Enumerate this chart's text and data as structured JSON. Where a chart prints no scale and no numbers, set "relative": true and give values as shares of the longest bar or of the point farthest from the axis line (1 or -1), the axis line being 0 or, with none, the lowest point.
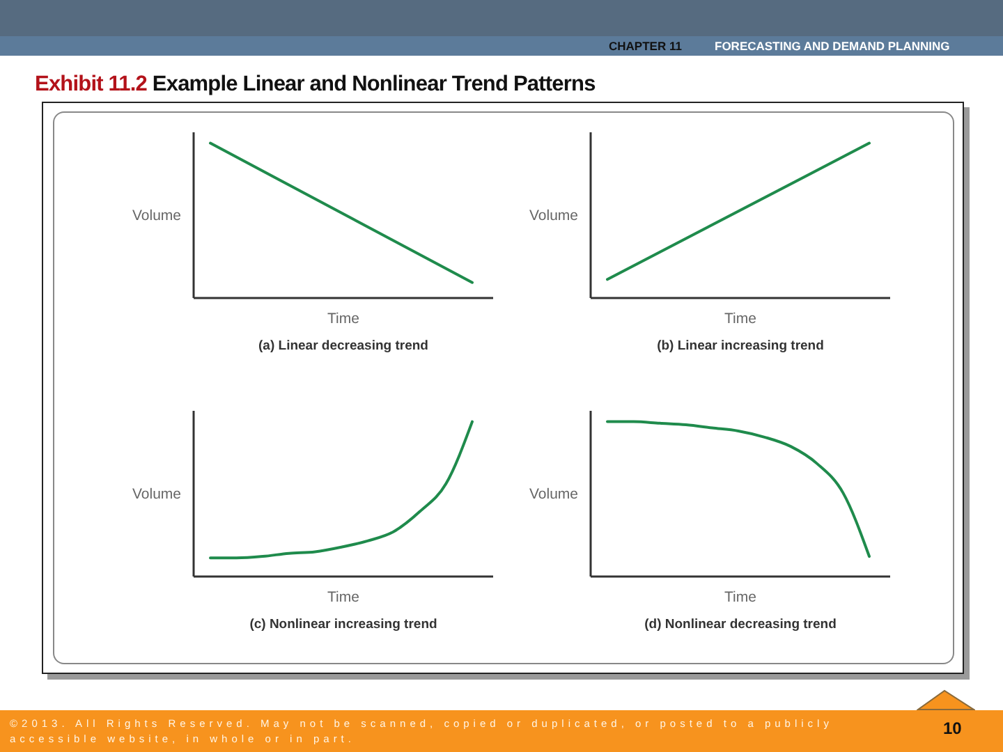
{
  "chart_data": [
    {
      "type": "other",
      "title": "Exhibit 11.2 Example Linear and Nonlinear Trend Patterns",
      "annotations": [
        "CHAPTER 11",
        "FORECASTING AND DEMAND PLANNING",
        "©2013. All Rights Reserved. May not be scanned, copied or duplicated, or posted to a publicly accessible website, in whole or in part.",
        "10"
      ]
    },
    {
      "type": "line",
      "title": "(a) Linear decreasing trend",
      "xlabel": "Time",
      "ylabel": "Volume",
      "categories": [
        null,
        null
      ],
      "values": [
        1,
        0.1
      ],
      "color": "#1f8b4c",
      "relative": true
    },
    {
      "type": "line",
      "title": "(b) Linear increasing trend",
      "xlabel": "Time",
      "ylabel": "Volume",
      "categories": [
        null,
        null
      ],
      "values": [
        0.12,
        1
      ],
      "color": "#1f8b4c",
      "relative": true
    },
    {
      "type": "line",
      "title": "(c) Nonlinear increasing trend",
      "xlabel": "Time",
      "ylabel": "Volume",
      "categories": [
        null,
        null,
        null,
        null,
        null,
        null,
        null,
        null,
        null,
        null,
        null
      ],
      "values": [
        0.12,
        0.12,
        0.13,
        0.15,
        0.16,
        0.19,
        0.23,
        0.29,
        0.42,
        0.6,
        1
      ],
      "color": "#1f8b4c",
      "relative": true
    },
    {
      "type": "line",
      "title": "(d) Nonlinear decreasing trend",
      "xlabel": "Time",
      "ylabel": "Volume",
      "categories": [
        null,
        null,
        null,
        null,
        null,
        null,
        null,
        null,
        null,
        null,
        null
      ],
      "values": [
        1,
        1,
        0.99,
        0.98,
        0.96,
        0.94,
        0.9,
        0.84,
        0.73,
        0.54,
        0.13
      ],
      "color": "#1f8b4c",
      "relative": true
    }
  ]
}
